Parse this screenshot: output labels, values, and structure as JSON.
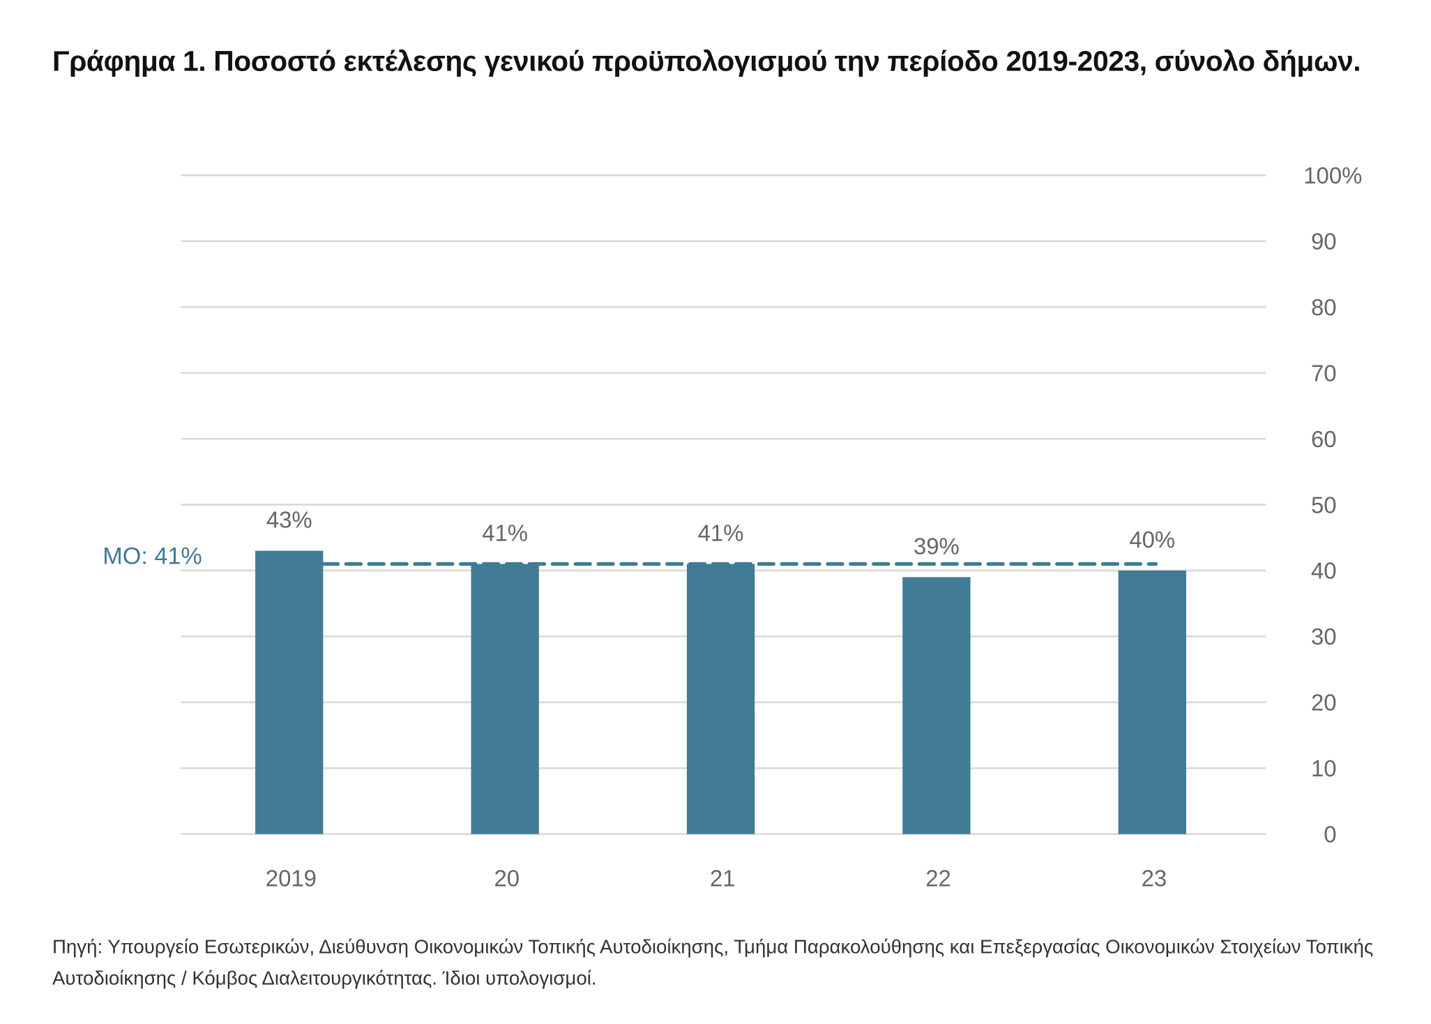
{
  "title": "Γράφημα 1. Ποσοστό εκτέλεσης γενικού προϋπολογισμού την περίοδο 2019-2023, σύνολο δήμων.",
  "source": "Πηγή: Υπουργείο Εσωτερικών, Διεύθυνση Οικονομικών Τοπικής Αυτοδιοίκησης, Τμήμα Παρακολούθησης και Επεξεργασίας Οικονομικών Στοιχείων Τοπικής Αυτοδιοίκησης / Κόμβος Διαλειτουργικότητας. Ίδιοι υπολογισμοί.",
  "chart_data": {
    "type": "bar",
    "title": "Γράφημα 1. Ποσοστό εκτέλεσης γενικού προϋπολογισμού την περίοδο 2019-2023, σύνολο δήμων.",
    "categories": [
      "2019",
      "20",
      "21",
      "22",
      "23"
    ],
    "values": [
      43,
      41,
      41,
      39,
      40
    ],
    "data_labels": [
      "43%",
      "41%",
      "41%",
      "39%",
      "40%"
    ],
    "ylim": [
      0,
      100
    ],
    "yticks": [
      "0",
      "10",
      "20",
      "30",
      "40",
      "50",
      "60",
      "70",
      "80",
      "90",
      "100%"
    ],
    "y_axis_side": "right",
    "grid": true,
    "average": {
      "label": "ΜΟ: 41%",
      "value": 41,
      "style": "dashed"
    },
    "colors": {
      "bar": "#427b95",
      "average": "#3f7b96",
      "grid": "#d9d9d9",
      "text": "#666666"
    }
  }
}
